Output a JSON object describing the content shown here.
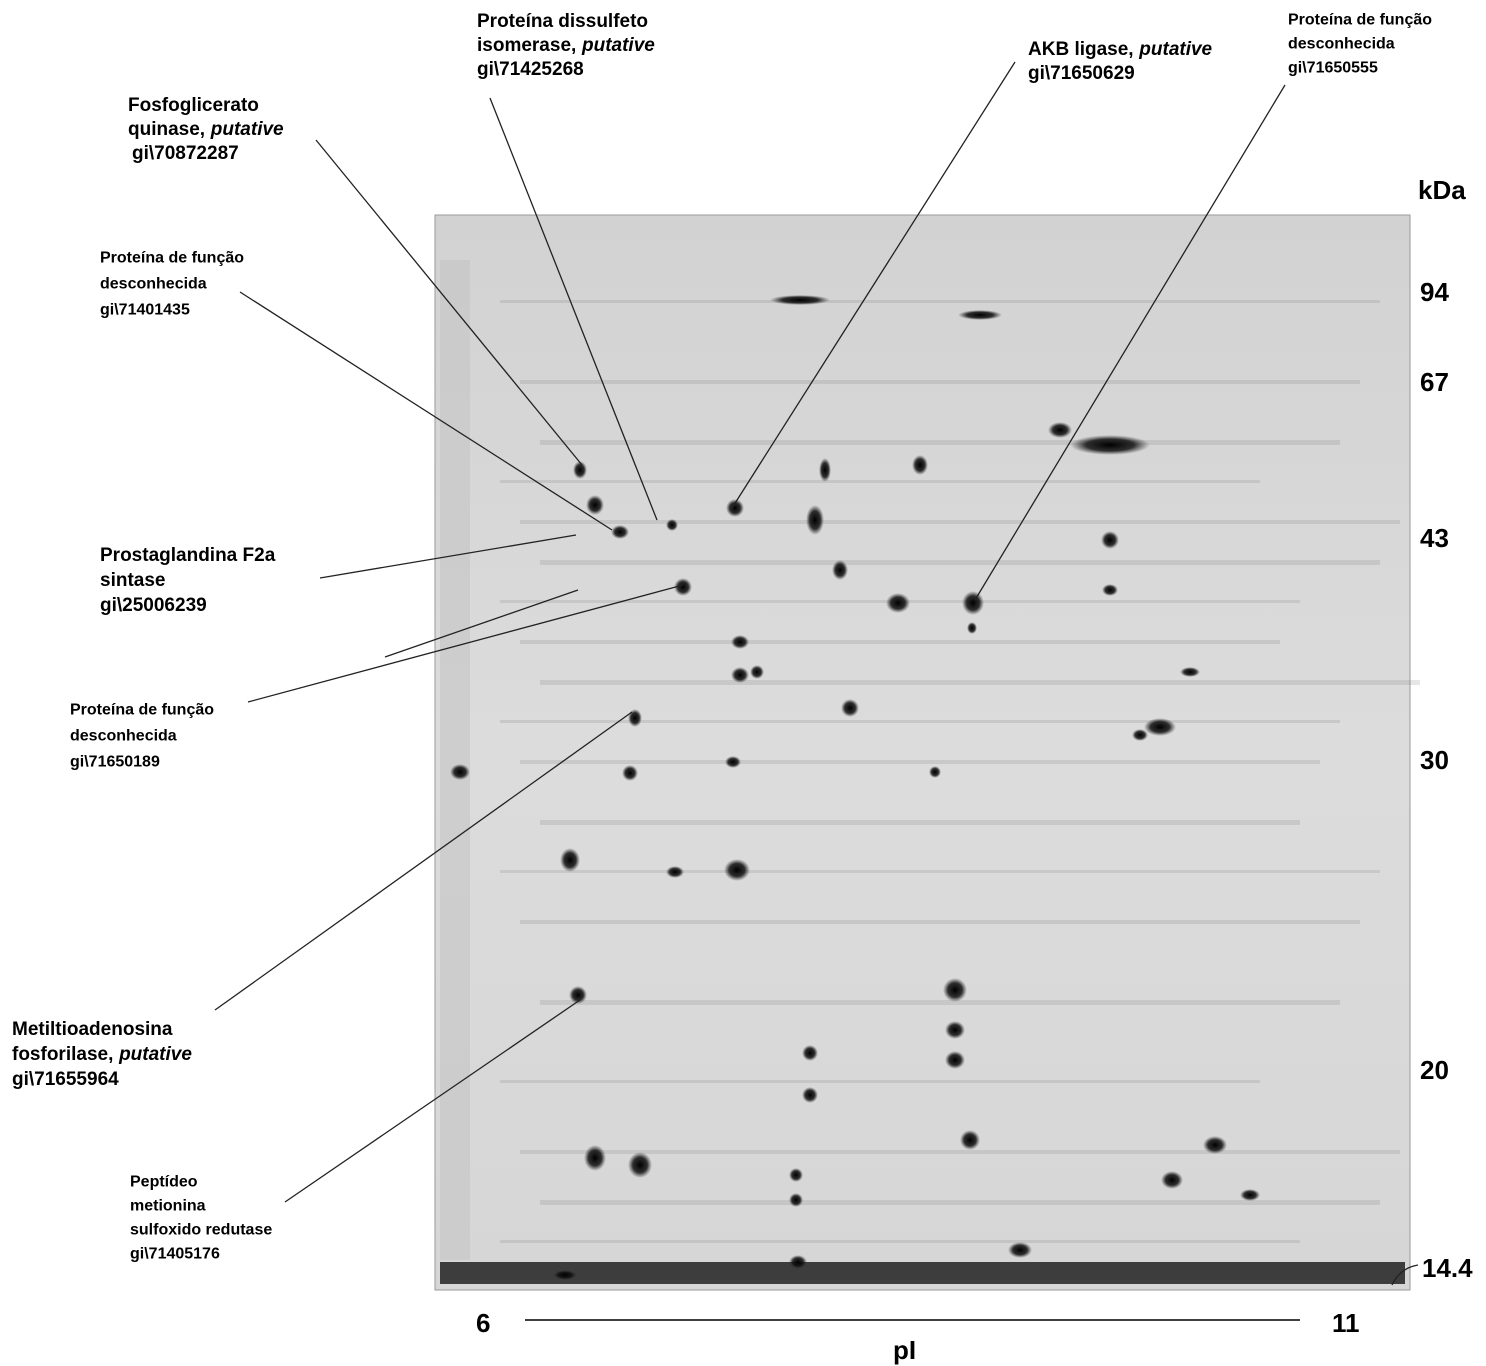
{
  "labels": [
    {
      "lines": [
        "Fosfoglicerato",
        "quinase,"
      ],
      "qualifier": "putative",
      "gi": "gi\\70872287"
    },
    {
      "lines": [
        "Proteína dissulfeto",
        "isomerase,"
      ],
      "qualifier": "putative",
      "gi": "gi\\71425268"
    },
    {
      "lines": [
        "AKB ligase,"
      ],
      "qualifier": "putative",
      "gi": "gi\\71650629"
    },
    {
      "lines": [
        "Proteína de função",
        "desconhecida"
      ],
      "gi": "gi\\71650555"
    },
    {
      "lines": [
        "Proteína de função",
        "desconhecida"
      ],
      "gi": "gi\\71401435"
    },
    {
      "lines": [
        "Prostaglandina F2a",
        "sintase"
      ],
      "gi": "gi\\25006239"
    },
    {
      "lines": [
        "Proteína de função",
        "desconhecida"
      ],
      "gi": "gi\\71650189"
    },
    {
      "lines": [
        "Metiltioadenosina",
        "fosforilase,"
      ],
      "qualifier": "putative",
      "gi": "gi\\71655964"
    },
    {
      "lines": [
        "Peptídeo",
        "metionina",
        "sulfoxido redutase"
      ],
      "gi": "gi\\71405176"
    }
  ],
  "mw_axis": {
    "unit": "kDa",
    "markers": [
      "94",
      "67",
      "43",
      "30",
      "20",
      "14.4"
    ]
  },
  "pi_axis": {
    "start": "6",
    "end": "11",
    "label": "pI"
  }
}
